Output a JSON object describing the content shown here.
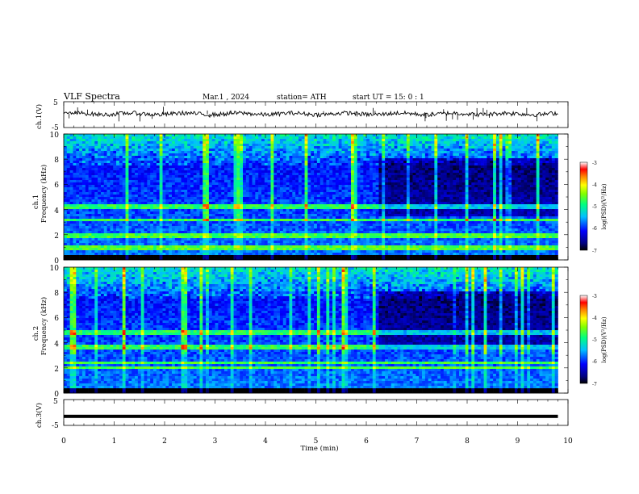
{
  "header": {
    "title": "VLF  Spectra",
    "date": "Mar.1  , 2024",
    "station": "station= ATH",
    "start": "start  UT  =   15: 0  : 1"
  },
  "panels": {
    "ch1_waveform": {
      "ylabel": "ch.1(V)",
      "yticks": [
        "5",
        "-5"
      ]
    },
    "ch1_spectrogram": {
      "ylabel_top": "ch.1",
      "ylabel": "Frequency  (kHz)",
      "yticks": [
        "10",
        "8",
        "6",
        "4",
        "2",
        "0"
      ]
    },
    "ch2_spectrogram": {
      "ylabel_top": "ch.2",
      "ylabel": "Frequency  (kHz)",
      "yticks": [
        "10",
        "8",
        "6",
        "4",
        "2",
        "0"
      ]
    },
    "ch3_waveform": {
      "ylabel": "ch.3(V)",
      "yticks": [
        "5",
        "-5"
      ]
    }
  },
  "xaxis": {
    "label": "Time  (min)",
    "ticks": [
      "0",
      "1",
      "2",
      "3",
      "4",
      "5",
      "6",
      "7",
      "8",
      "9",
      "10"
    ]
  },
  "colorbar": {
    "label": "log(PSD)(V²/Hz)",
    "ticks": [
      "-3",
      "-4",
      "-5",
      "-6",
      "-7"
    ]
  },
  "colors": {
    "background": "#ffffff",
    "axes": "#000000",
    "waveform": "#000000"
  },
  "chart_data": [
    {
      "type": "line",
      "title": "",
      "xlabel": "",
      "ylabel": "ch.1(V)",
      "xlim": [
        0,
        10
      ],
      "ylim": [
        -5,
        5
      ],
      "series": [
        {
          "x": [
            0,
            9.8
          ],
          "values": [
            0.3,
            0.3
          ]
        }
      ]
    },
    {
      "type": "heatmap",
      "ylabel": "Frequency  (kHz)",
      "xlim": [
        0,
        10
      ],
      "ylim": [
        0,
        10
      ],
      "time_extent_min": 9.8,
      "color_scale": {
        "label": "log(PSD)(V²/Hz)",
        "range": [
          -7,
          -3
        ]
      },
      "bands_khz": [
        1.0,
        1.8,
        2.0,
        3.2,
        4.2
      ],
      "activity_change_min": 6.2
    },
    {
      "type": "heatmap",
      "ylabel": "Frequency  (kHz)",
      "xlim": [
        0,
        10
      ],
      "ylim": [
        0,
        10
      ],
      "time_extent_min": 9.8,
      "color_scale": {
        "label": "log(PSD)(V²/Hz)",
        "range": [
          -7,
          -3
        ]
      },
      "bands_khz": [
        2.0,
        2.4,
        3.6,
        4.8
      ],
      "activity_change_min": 6.2
    },
    {
      "type": "line",
      "ylabel": "ch.3(V)",
      "xlabel": "Time  (min)",
      "xlim": [
        0,
        10
      ],
      "ylim": [
        -5,
        5
      ],
      "series": [
        {
          "x": [
            0,
            9.8
          ],
          "values": [
            -1.5,
            -1.5
          ]
        }
      ]
    }
  ]
}
